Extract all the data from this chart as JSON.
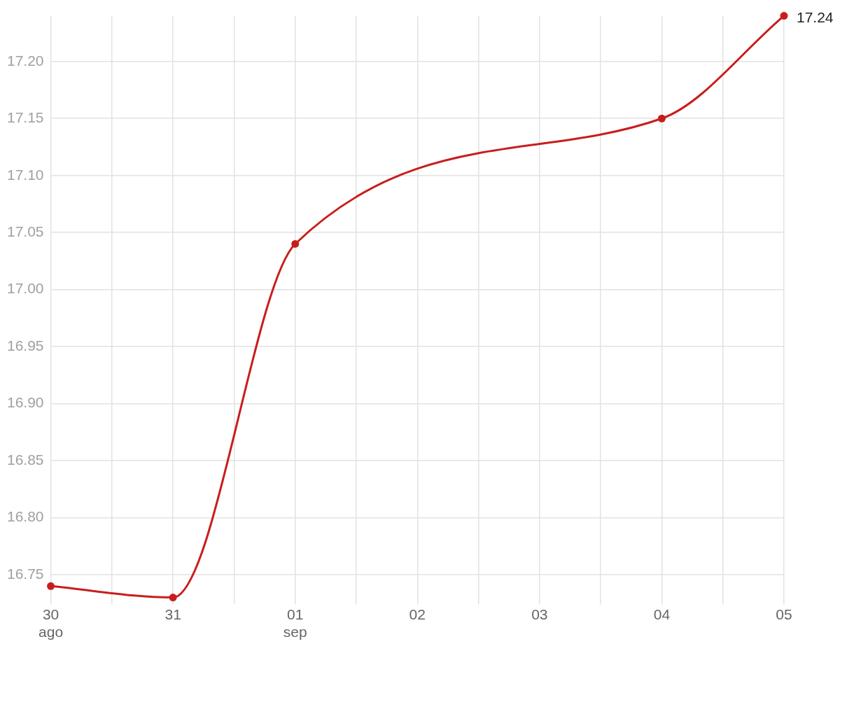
{
  "chart_data": {
    "type": "line",
    "x": [
      "--08-30",
      "--08-31",
      "--09-01",
      "--09-04",
      "--09-05"
    ],
    "series": [
      {
        "color": "#c71e1d",
        "values": [
          16.74,
          16.73,
          17.04,
          17.15,
          17.24
        ],
        "value_labels": [
          null,
          null,
          null,
          null,
          "17.24"
        ]
      }
    ],
    "xlim": [
      "--08-30",
      "--09-05"
    ],
    "xticks": [
      {
        "value": "--08-30",
        "label": "30\nago"
      },
      {
        "value": "--08-30T12:00",
        "label": null
      },
      {
        "value": "--08-31",
        "label": "31"
      },
      {
        "value": "--08-31T12:00",
        "label": null
      },
      {
        "value": "--09-01",
        "label": "01\nsep"
      },
      {
        "value": "--09-01T12:00",
        "label": null
      },
      {
        "value": "--09-02",
        "label": "02"
      },
      {
        "value": "--09-02T12:00",
        "label": null
      },
      {
        "value": "--09-03",
        "label": "03"
      },
      {
        "value": "--09-03T12:00",
        "label": null
      },
      {
        "value": "--09-04",
        "label": "04"
      },
      {
        "value": "--09-04T12:00",
        "label": null
      },
      {
        "value": "--09-05",
        "label": "05"
      }
    ],
    "ylim": [
      16.73,
      17.24
    ],
    "yticks": [
      16.75,
      {
        "value": 16.8,
        "label": "16.80"
      },
      16.85,
      {
        "value": 16.9,
        "label": "16.90"
      },
      16.95,
      {
        "value": 17.0,
        "label": "17.00"
      },
      17.05,
      {
        "value": 17.1,
        "label": "17.10"
      },
      17.15,
      {
        "value": 17.2,
        "label": "17.20"
      }
    ],
    "grid": true,
    "legend": false,
    "marker": "circle",
    "line_style": "solid"
  }
}
